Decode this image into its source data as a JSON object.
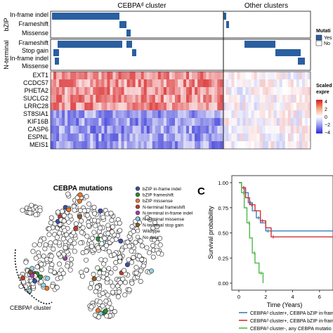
{
  "panel_top": {
    "headers": [
      "CEBPAᵈ cluster",
      "Other clusters"
    ],
    "group_labels": [
      "bZIP",
      "N-terminal"
    ],
    "mutation_rows": [
      "In-frame indel",
      "Frameshift",
      "Missense",
      "Frameshift",
      "Stop gain",
      "In-frame indel",
      "Missense"
    ],
    "legend_mutation": {
      "title": "Mutati",
      "items": [
        "Yes",
        "No"
      ],
      "colors": [
        "#2a5fa0",
        "#ffffff"
      ]
    },
    "gene_rows": [
      "EXT1",
      "CCDC57",
      "PHETA2",
      "SUCLG2",
      "LRRC28",
      "ST8SIA1",
      "KIF16B",
      "CASP6",
      "ESPNL",
      "MEIS1"
    ],
    "legend_expression": {
      "title": [
        "Scaled",
        "expre"
      ],
      "ticks": [
        "4",
        "2",
        "0",
        "−2",
        "−4"
      ]
    }
  },
  "chart_data": [
    {
      "type": "heatmap",
      "title": "",
      "column_groups": [
        "CEBPAᵈ cluster",
        "Other clusters"
      ],
      "rows": [
        "EXT1",
        "CCDC57",
        "PHETA2",
        "SUCLG2",
        "LRRC28",
        "ST8SIA1",
        "KIF16B",
        "CASP6",
        "ESPNL",
        "MEIS1"
      ],
      "pattern": {
        "CEBPAᵈ cluster": {
          "EXT1..LRRC28": "high",
          "ST8SIA1..MEIS1": "low"
        },
        "Other clusters": "near zero"
      },
      "scale": [
        -4,
        4
      ]
    },
    {
      "type": "scatter",
      "title": "CEBPA mutations",
      "annotation": "CEBPAᵈ cluster",
      "legend": [
        {
          "name": "bZIP in-frame indel",
          "color": "#3a4fa8"
        },
        {
          "name": "bZIP frameshift",
          "color": "#2c8a3c"
        },
        {
          "name": "bZIP missense",
          "color": "#e8792a"
        },
        {
          "name": "N-terminal frameshift",
          "color": "#c03a2a"
        },
        {
          "name": "N-terminal in-frame indel",
          "color": "#a040b0"
        },
        {
          "name": "N-terminal missense",
          "color": "#8fd3e8"
        },
        {
          "name": "N-terminal stop gain",
          "color": "#8b5a2b"
        },
        {
          "name": "Wildtype",
          "color": "#ffffff"
        },
        {
          "name": "No data",
          "color": "#ffffff"
        }
      ]
    },
    {
      "type": "line",
      "panel_label": "C",
      "ylabel": "Survival probability",
      "xlabel": "Time (Years)",
      "xlim": [
        0,
        7
      ],
      "ylim": [
        0,
        1
      ],
      "xticks": [
        "0",
        "2",
        "4",
        "6"
      ],
      "yticks": [
        "0.00",
        "0.25",
        "0.50",
        "0.75",
        "1.00"
      ],
      "series": [
        {
          "name": "CEBPAᵈ cluster+, CEBPA bZIP in-frame",
          "color": "#3a7fc0",
          "x": [
            0,
            0.2,
            0.4,
            0.7,
            1.0,
            1.3,
            1.6,
            2.0,
            7.0
          ],
          "y": [
            1.0,
            0.95,
            0.9,
            0.8,
            0.72,
            0.65,
            0.6,
            0.52,
            0.52
          ]
        },
        {
          "name": "CEBPAᵈ cluster+, CEBPA bZIP in-frame",
          "color": "#d03030",
          "x": [
            0,
            0.2,
            0.5,
            0.8,
            1.2,
            1.6,
            2.0,
            2.4,
            7.0
          ],
          "y": [
            1.0,
            0.95,
            0.85,
            0.78,
            0.72,
            0.62,
            0.55,
            0.46,
            0.46
          ]
        },
        {
          "name": "CEBPAᵈ cluster-, any CEBPA mutatio",
          "color": "#50b848",
          "x": [
            0,
            0.2,
            0.4,
            0.6,
            0.8,
            1.0,
            1.2,
            1.5,
            1.8
          ],
          "y": [
            1.0,
            0.9,
            0.75,
            0.6,
            0.45,
            0.3,
            0.2,
            0.1,
            0.0
          ]
        }
      ]
    }
  ]
}
